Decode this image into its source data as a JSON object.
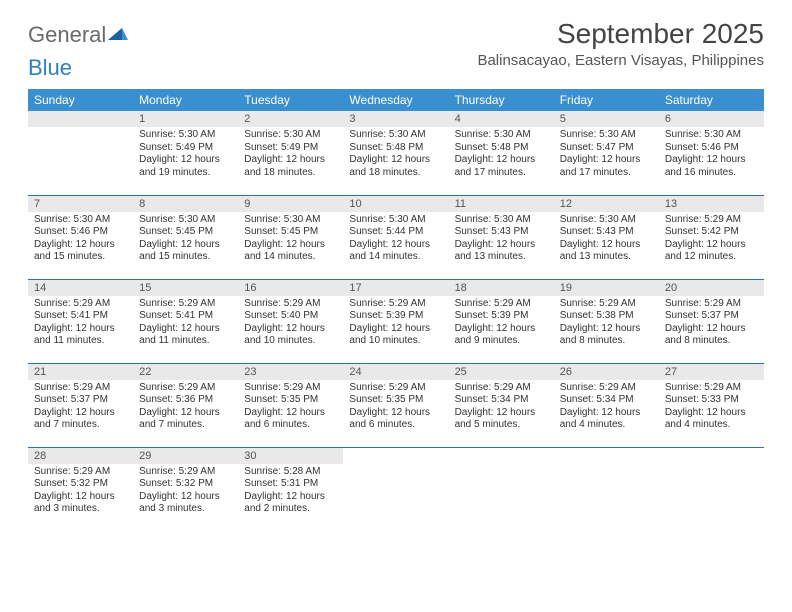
{
  "logo": {
    "text1": "General",
    "text2": "Blue"
  },
  "title": "September 2025",
  "location": "Balinsacayao, Eastern Visayas, Philippines",
  "columns": [
    "Sunday",
    "Monday",
    "Tuesday",
    "Wednesday",
    "Thursday",
    "Friday",
    "Saturday"
  ],
  "colors": {
    "header_bg": "#3a8fd0",
    "header_fg": "#ffffff",
    "daynum_bg": "#e9e9e9",
    "row_border": "#2f6fa8",
    "logo_gray": "#6a6a6a",
    "logo_blue": "#2f7fc2"
  },
  "weeks": [
    [
      {
        "n": "",
        "sr": "",
        "ss": "",
        "dl": ""
      },
      {
        "n": "1",
        "sr": "5:30 AM",
        "ss": "5:49 PM",
        "dl": "12 hours and 19 minutes."
      },
      {
        "n": "2",
        "sr": "5:30 AM",
        "ss": "5:49 PM",
        "dl": "12 hours and 18 minutes."
      },
      {
        "n": "3",
        "sr": "5:30 AM",
        "ss": "5:48 PM",
        "dl": "12 hours and 18 minutes."
      },
      {
        "n": "4",
        "sr": "5:30 AM",
        "ss": "5:48 PM",
        "dl": "12 hours and 17 minutes."
      },
      {
        "n": "5",
        "sr": "5:30 AM",
        "ss": "5:47 PM",
        "dl": "12 hours and 17 minutes."
      },
      {
        "n": "6",
        "sr": "5:30 AM",
        "ss": "5:46 PM",
        "dl": "12 hours and 16 minutes."
      }
    ],
    [
      {
        "n": "7",
        "sr": "5:30 AM",
        "ss": "5:46 PM",
        "dl": "12 hours and 15 minutes."
      },
      {
        "n": "8",
        "sr": "5:30 AM",
        "ss": "5:45 PM",
        "dl": "12 hours and 15 minutes."
      },
      {
        "n": "9",
        "sr": "5:30 AM",
        "ss": "5:45 PM",
        "dl": "12 hours and 14 minutes."
      },
      {
        "n": "10",
        "sr": "5:30 AM",
        "ss": "5:44 PM",
        "dl": "12 hours and 14 minutes."
      },
      {
        "n": "11",
        "sr": "5:30 AM",
        "ss": "5:43 PM",
        "dl": "12 hours and 13 minutes."
      },
      {
        "n": "12",
        "sr": "5:30 AM",
        "ss": "5:43 PM",
        "dl": "12 hours and 13 minutes."
      },
      {
        "n": "13",
        "sr": "5:29 AM",
        "ss": "5:42 PM",
        "dl": "12 hours and 12 minutes."
      }
    ],
    [
      {
        "n": "14",
        "sr": "5:29 AM",
        "ss": "5:41 PM",
        "dl": "12 hours and 11 minutes."
      },
      {
        "n": "15",
        "sr": "5:29 AM",
        "ss": "5:41 PM",
        "dl": "12 hours and 11 minutes."
      },
      {
        "n": "16",
        "sr": "5:29 AM",
        "ss": "5:40 PM",
        "dl": "12 hours and 10 minutes."
      },
      {
        "n": "17",
        "sr": "5:29 AM",
        "ss": "5:39 PM",
        "dl": "12 hours and 10 minutes."
      },
      {
        "n": "18",
        "sr": "5:29 AM",
        "ss": "5:39 PM",
        "dl": "12 hours and 9 minutes."
      },
      {
        "n": "19",
        "sr": "5:29 AM",
        "ss": "5:38 PM",
        "dl": "12 hours and 8 minutes."
      },
      {
        "n": "20",
        "sr": "5:29 AM",
        "ss": "5:37 PM",
        "dl": "12 hours and 8 minutes."
      }
    ],
    [
      {
        "n": "21",
        "sr": "5:29 AM",
        "ss": "5:37 PM",
        "dl": "12 hours and 7 minutes."
      },
      {
        "n": "22",
        "sr": "5:29 AM",
        "ss": "5:36 PM",
        "dl": "12 hours and 7 minutes."
      },
      {
        "n": "23",
        "sr": "5:29 AM",
        "ss": "5:35 PM",
        "dl": "12 hours and 6 minutes."
      },
      {
        "n": "24",
        "sr": "5:29 AM",
        "ss": "5:35 PM",
        "dl": "12 hours and 6 minutes."
      },
      {
        "n": "25",
        "sr": "5:29 AM",
        "ss": "5:34 PM",
        "dl": "12 hours and 5 minutes."
      },
      {
        "n": "26",
        "sr": "5:29 AM",
        "ss": "5:34 PM",
        "dl": "12 hours and 4 minutes."
      },
      {
        "n": "27",
        "sr": "5:29 AM",
        "ss": "5:33 PM",
        "dl": "12 hours and 4 minutes."
      }
    ],
    [
      {
        "n": "28",
        "sr": "5:29 AM",
        "ss": "5:32 PM",
        "dl": "12 hours and 3 minutes."
      },
      {
        "n": "29",
        "sr": "5:29 AM",
        "ss": "5:32 PM",
        "dl": "12 hours and 3 minutes."
      },
      {
        "n": "30",
        "sr": "5:28 AM",
        "ss": "5:31 PM",
        "dl": "12 hours and 2 minutes."
      },
      {
        "n": "",
        "sr": "",
        "ss": "",
        "dl": ""
      },
      {
        "n": "",
        "sr": "",
        "ss": "",
        "dl": ""
      },
      {
        "n": "",
        "sr": "",
        "ss": "",
        "dl": ""
      },
      {
        "n": "",
        "sr": "",
        "ss": "",
        "dl": ""
      }
    ]
  ],
  "labels": {
    "sunrise": "Sunrise: ",
    "sunset": "Sunset: ",
    "daylight": "Daylight: "
  }
}
